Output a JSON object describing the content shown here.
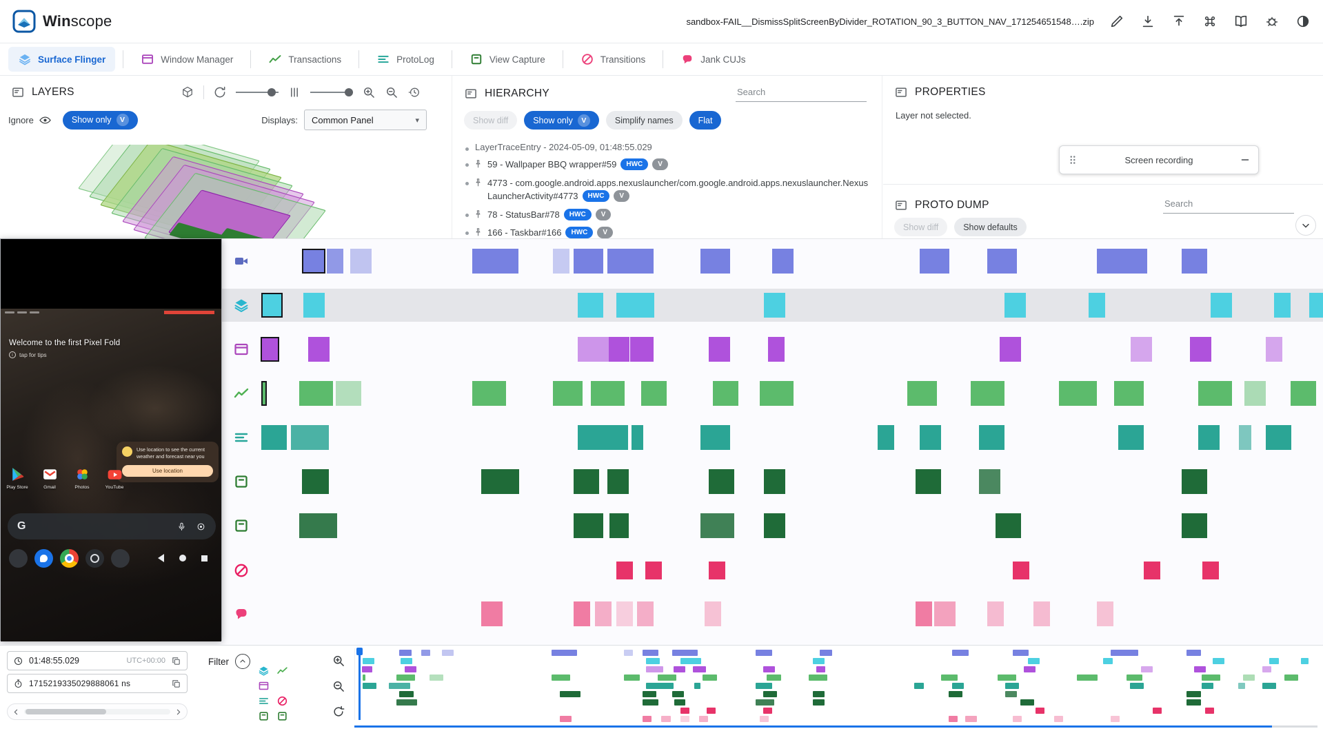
{
  "header": {
    "brand_bold": "Win",
    "brand_rest": "scope",
    "file_name": "sandbox-FAIL__DismissSplitScreenByDivider_ROTATION_90_3_BUTTON_NAV_171254651548….zip",
    "actions": [
      {
        "name": "edit",
        "icon": "pencil"
      },
      {
        "name": "download",
        "icon": "download"
      },
      {
        "name": "upload",
        "icon": "upload"
      },
      {
        "name": "keyboard-shortcuts",
        "icon": "command"
      },
      {
        "name": "documentation",
        "icon": "book"
      },
      {
        "name": "report-bug",
        "icon": "bug"
      },
      {
        "name": "dark-mode",
        "icon": "darkmode"
      }
    ]
  },
  "tabs": [
    {
      "label": "Surface Flinger",
      "icon": "layers",
      "color": "#6BB2F2",
      "active": true
    },
    {
      "label": "Window Manager",
      "icon": "window",
      "color": "#AB47BC",
      "active": false
    },
    {
      "label": "Transactions",
      "icon": "chart",
      "color": "#43A047",
      "active": false
    },
    {
      "label": "ProtoLog",
      "icon": "list",
      "color": "#26A69A",
      "active": false
    },
    {
      "label": "View Capture",
      "icon": "square",
      "color": "#2E7D32",
      "active": false
    },
    {
      "label": "Transitions",
      "icon": "circleslash",
      "color": "#EC407A",
      "active": false
    },
    {
      "label": "Jank CUJs",
      "icon": "blob",
      "color": "#EC407A",
      "active": false
    }
  ],
  "layers": {
    "title": "LAYERS",
    "ignore_label": "Ignore",
    "show_only": "Show only",
    "show_only_badge": "V",
    "displays_label": "Displays:",
    "displays_value": "Common Panel"
  },
  "hierarchy": {
    "title": "HIERARCHY",
    "search_placeholder": "Search",
    "show_diff": "Show diff",
    "show_only": "Show only",
    "show_only_badge": "V",
    "simplify_names": "Simplify names",
    "flat": "Flat",
    "root_label": "LayerTraceEntry - 2024-05-09, 01:48:55.029",
    "nodes": [
      {
        "label": "59 - Wallpaper BBQ wrapper#59",
        "chips": [
          "HWC",
          "V"
        ]
      },
      {
        "label": "4773 - com.google.android.apps.nexuslauncher/com.google.android.apps.nexuslauncher.NexusLauncherActivity#4773",
        "chips": [
          "HWC",
          "V"
        ]
      },
      {
        "label": "78 - StatusBar#78",
        "chips": [
          "HWC",
          "V"
        ]
      },
      {
        "label": "166 - Taskbar#166",
        "chips": [
          "HWC",
          "V"
        ]
      }
    ]
  },
  "properties": {
    "title": "PROPERTIES",
    "empty_text": "Layer not selected.",
    "floating_window_title": "Screen recording"
  },
  "proto_dump": {
    "title": "PROTO DUMP",
    "search_placeholder": "Search",
    "show_diff": "Show diff",
    "show_defaults": "Show defaults"
  },
  "screen_recording": {
    "welcome_title": "Welcome to the first Pixel Fold",
    "welcome_subtitle": "tap for tips",
    "notification_text": "Use location to see the current weather and forecast near you",
    "notification_button": "Use location",
    "apps": [
      {
        "label": "Play Store",
        "icon": "playstore"
      },
      {
        "label": "Gmail",
        "icon": "gmail"
      },
      {
        "label": "Photos",
        "icon": "photos"
      },
      {
        "label": "YouTube",
        "icon": "youtube"
      }
    ]
  },
  "bottom": {
    "time": "01:48:55.029",
    "timezone": "UTC+00:00",
    "ns": "1715219335029888061 ns",
    "filter_label": "Filter",
    "filters": [
      {
        "icon": "layers",
        "color": "#29B6CE"
      },
      {
        "icon": "chart",
        "color": "#4CAF50"
      },
      {
        "icon": "window",
        "color": "#AB47BC"
      },
      null,
      {
        "icon": "list",
        "color": "#26A69A"
      },
      {
        "icon": "circleslash",
        "color": "#E91E63"
      },
      {
        "icon": "square",
        "color": "#2E7D32"
      },
      {
        "icon": "square",
        "color": "#2E7D32"
      }
    ]
  },
  "timeline": {
    "rows": [
      {
        "name": "screen-recording",
        "label": "Screen Recording",
        "icon": "video",
        "icon_color": "#5C6BC0",
        "color": "#7781E1",
        "sel": 0,
        "blocks": [
          [
            60,
            34
          ],
          [
            96,
            24,
            0.8
          ],
          [
            130,
            31,
            0.45
          ],
          [
            307,
            67
          ],
          [
            424,
            24,
            0.4
          ],
          [
            454,
            43
          ],
          [
            503,
            67
          ],
          [
            638,
            43
          ],
          [
            742,
            31
          ],
          [
            956,
            43
          ],
          [
            1054,
            43
          ],
          [
            1213,
            73
          ],
          [
            1336,
            37
          ]
        ]
      },
      {
        "name": "surface-flinger",
        "label": "Surface Flinger",
        "icon": "layers",
        "icon_color": "#29B6CE",
        "color": "#4DD0E1",
        "sel": 0,
        "blocks": [
          [
            1,
            31
          ],
          [
            62,
            31
          ],
          [
            460,
            37
          ],
          [
            516,
            55
          ],
          [
            730,
            31
          ],
          [
            1079,
            31
          ],
          [
            1201,
            24
          ],
          [
            1378,
            31
          ],
          [
            1470,
            24
          ],
          [
            1521,
            20
          ]
        ]
      },
      {
        "name": "window-manager",
        "label": "Window Manager",
        "icon": "window",
        "icon_color": "#AB47BC",
        "color": "#AF52DC",
        "sel": 0,
        "blocks": [
          [
            0,
            27
          ],
          [
            69,
            31
          ],
          [
            460,
            45,
            0.6
          ],
          [
            505,
            30
          ],
          [
            536,
            34
          ],
          [
            650,
            31
          ],
          [
            736,
            24
          ],
          [
            1072,
            31
          ],
          [
            1262,
            31,
            0.5
          ],
          [
            1348,
            31
          ],
          [
            1458,
            24,
            0.5
          ]
        ]
      },
      {
        "name": "transactions",
        "label": "Transactions",
        "icon": "chart",
        "icon_color": "#4CAF50",
        "color": "#5CBB6C",
        "sel": 0,
        "blocks": [
          [
            1,
            8
          ],
          [
            56,
            49
          ],
          [
            109,
            37,
            0.45
          ],
          [
            307,
            49
          ],
          [
            424,
            43
          ],
          [
            479,
            49
          ],
          [
            552,
            37
          ],
          [
            656,
            37
          ],
          [
            724,
            49
          ],
          [
            938,
            43
          ],
          [
            1030,
            49
          ],
          [
            1158,
            55
          ],
          [
            1238,
            43
          ],
          [
            1360,
            49
          ],
          [
            1427,
            31,
            0.5
          ],
          [
            1494,
            37
          ]
        ]
      },
      {
        "name": "protolog",
        "label": "ProtoLog",
        "icon": "list",
        "icon_color": "#26A69A",
        "color": "#2BA595",
        "blocks": [
          [
            1,
            37
          ],
          [
            44,
            55,
            0.85
          ],
          [
            460,
            73
          ],
          [
            538,
            17
          ],
          [
            638,
            43
          ],
          [
            895,
            24
          ],
          [
            956,
            31
          ],
          [
            1042,
            37
          ],
          [
            1244,
            37
          ],
          [
            1360,
            31
          ],
          [
            1419,
            18,
            0.6
          ],
          [
            1458,
            37
          ]
        ]
      },
      {
        "name": "view-capture-taskbar",
        "label": "View Capture",
        "icon": "square",
        "icon_color": "#2E7D32",
        "color": "#1F6B38",
        "blocks": [
          [
            60,
            39
          ],
          [
            320,
            55
          ],
          [
            454,
            37
          ],
          [
            503,
            31
          ],
          [
            650,
            37
          ],
          [
            730,
            31
          ],
          [
            950,
            37
          ],
          [
            1042,
            31,
            0.8
          ],
          [
            1336,
            37
          ]
        ]
      },
      {
        "name": "view-capture-launcher",
        "label": "View Capture",
        "icon": "square",
        "icon_color": "#2E7D32",
        "color": "#1F6B38",
        "blocks": [
          [
            56,
            55,
            0.9
          ],
          [
            454,
            43
          ],
          [
            506,
            28
          ],
          [
            638,
            49,
            0.85
          ],
          [
            730,
            31
          ],
          [
            1066,
            37
          ],
          [
            1336,
            37
          ]
        ]
      },
      {
        "name": "transitions",
        "label": "Transitions",
        "icon": "circleslash",
        "icon_color": "#E91E63",
        "color": "#E73369",
        "blocks": [
          [
            516,
            24
          ],
          [
            558,
            24
          ],
          [
            650,
            24
          ],
          [
            1091,
            24
          ],
          [
            1281,
            24
          ],
          [
            1366,
            24
          ]
        ]
      },
      {
        "name": "jank-cujs",
        "label": "Jank CUJs",
        "icon": "blob",
        "icon_color": "#EC407A",
        "color": "#F07CA3",
        "blocks": [
          [
            320,
            31
          ],
          [
            454,
            24
          ],
          [
            485,
            24,
            0.6
          ],
          [
            516,
            24,
            0.35
          ],
          [
            546,
            24,
            0.6
          ],
          [
            644,
            24,
            0.45
          ],
          [
            950,
            24
          ],
          [
            977,
            31,
            0.7
          ],
          [
            1054,
            24,
            0.5
          ],
          [
            1121,
            24,
            0.5
          ],
          [
            1213,
            24,
            0.45
          ]
        ]
      }
    ]
  }
}
